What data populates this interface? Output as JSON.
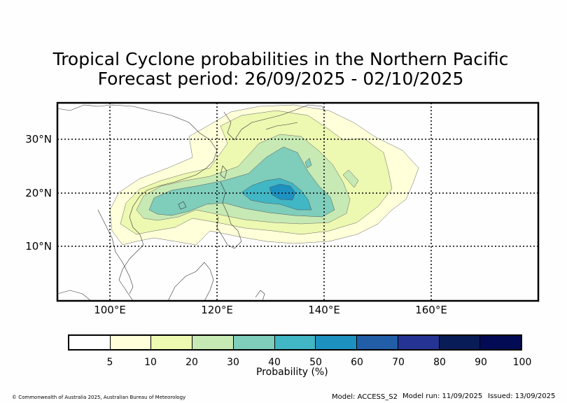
{
  "title": {
    "line1": "Tropical Cyclone probabilities in the Northern Pacific",
    "line2": "Forecast period: 26/09/2025 - 02/10/2025"
  },
  "map": {
    "lat_labels": [
      "30°N",
      "20°N",
      "10°N"
    ],
    "lon_labels": [
      "100°E",
      "120°E",
      "140°E",
      "160°E"
    ]
  },
  "colorbar": {
    "colors": [
      "#ffffff",
      "#ffffd9",
      "#edf8b1",
      "#c7e9b4",
      "#7fcdbb",
      "#41b6c4",
      "#1d91c0",
      "#225ea8",
      "#253494",
      "#081d58",
      "#030b55"
    ],
    "ticks": [
      "5",
      "10",
      "20",
      "30",
      "40",
      "50",
      "60",
      "70",
      "80",
      "90",
      "100"
    ],
    "label": "Probability (%)"
  },
  "footer": {
    "copyright": "© Commonwealth of Australia 2025, Australian Bureau of Meteorology",
    "model": "Model: ACCESS_S2",
    "model_run": "Model run: 11/09/2025",
    "issued": "Issued: 13/09/2025"
  }
}
